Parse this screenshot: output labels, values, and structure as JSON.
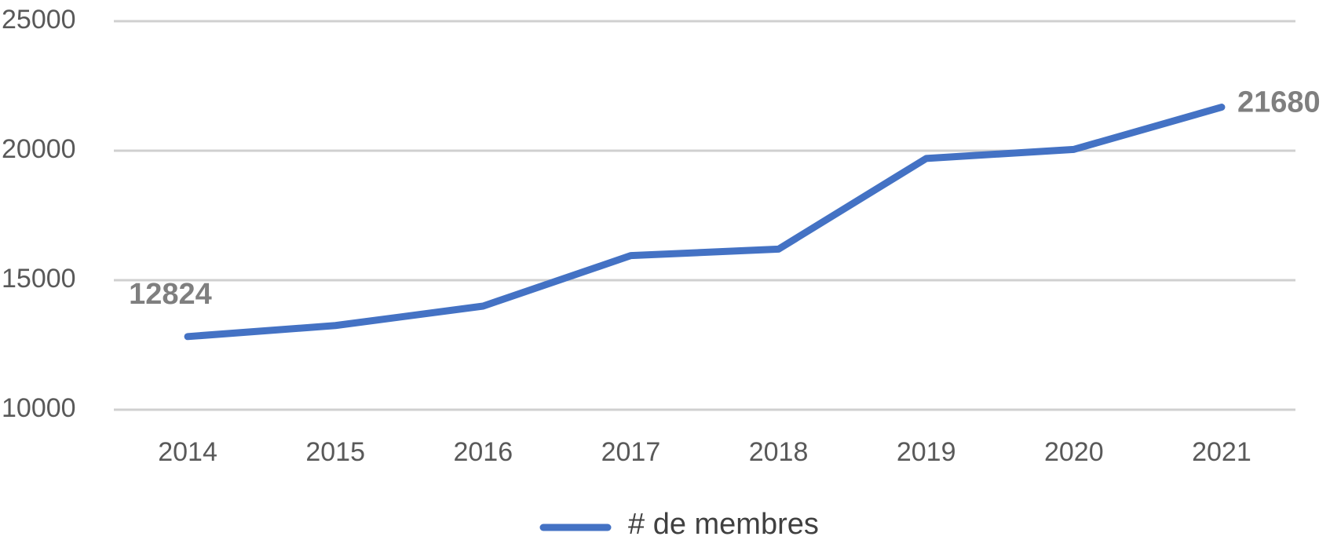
{
  "chart_data": {
    "type": "line",
    "categories": [
      "2014",
      "2015",
      "2016",
      "2017",
      "2018",
      "2019",
      "2020",
      "2021"
    ],
    "series": [
      {
        "name": "# de membres",
        "color": "#4472c4",
        "values": [
          12824,
          13250,
          14000,
          15950,
          16200,
          19700,
          20050,
          21680
        ]
      }
    ],
    "ylim": [
      10000,
      25000
    ],
    "yticks": [
      10000,
      15000,
      20000,
      25000
    ],
    "grid": true,
    "legend": "bottom"
  }
}
